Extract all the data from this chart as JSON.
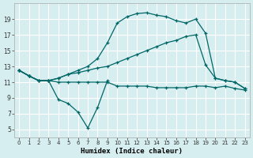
{
  "xlabel": "Humidex (Indice chaleur)",
  "bg_color": "#d7eef0",
  "grid_color": "#ffffff",
  "line_color": "#006666",
  "xlim": [
    -0.5,
    23.5
  ],
  "ylim": [
    4,
    21
  ],
  "xticks": [
    0,
    1,
    2,
    3,
    4,
    5,
    6,
    7,
    8,
    9,
    10,
    11,
    12,
    13,
    14,
    15,
    16,
    17,
    18,
    19,
    20,
    21,
    22,
    23
  ],
  "yticks": [
    5,
    7,
    9,
    11,
    13,
    15,
    17,
    19
  ],
  "line1_x": [
    0,
    1,
    2,
    3,
    4,
    5,
    6,
    7,
    8,
    9
  ],
  "line1_y": [
    12.5,
    11.8,
    11.2,
    11.2,
    8.8,
    8.3,
    7.2,
    5.2,
    7.8,
    11.2
  ],
  "line2_x": [
    0,
    1,
    2,
    3,
    4,
    5,
    6,
    7,
    8,
    9,
    10,
    11,
    12,
    13,
    14,
    15,
    16,
    17,
    18,
    19,
    20,
    21,
    22,
    23
  ],
  "line2_y": [
    12.5,
    11.8,
    11.2,
    11.2,
    11.0,
    11.0,
    11.0,
    11.0,
    11.0,
    11.0,
    10.5,
    10.5,
    10.5,
    10.5,
    10.3,
    10.3,
    10.3,
    10.3,
    10.5,
    10.5,
    10.3,
    10.5,
    10.2,
    10.0
  ],
  "line3_x": [
    0,
    1,
    2,
    3,
    4,
    5,
    6,
    7,
    8,
    9,
    10,
    11,
    12,
    13,
    14,
    15,
    16,
    17,
    18,
    19,
    20,
    21,
    22,
    23
  ],
  "line3_y": [
    12.5,
    11.8,
    11.2,
    11.2,
    11.5,
    12.0,
    12.2,
    12.5,
    12.8,
    13.0,
    13.5,
    14.0,
    14.5,
    15.0,
    15.5,
    16.0,
    16.3,
    16.8,
    17.0,
    13.2,
    11.5,
    11.2,
    11.0,
    10.2
  ],
  "line4_x": [
    0,
    1,
    2,
    3,
    4,
    5,
    6,
    7,
    8,
    9,
    10,
    11,
    12,
    13,
    14,
    15,
    16,
    17,
    18,
    19,
    20,
    21,
    22,
    23
  ],
  "line4_y": [
    12.5,
    11.8,
    11.2,
    11.2,
    11.5,
    12.0,
    12.5,
    13.0,
    14.0,
    16.0,
    18.5,
    19.3,
    19.7,
    19.8,
    19.5,
    19.3,
    18.8,
    18.5,
    19.0,
    17.2,
    11.5,
    11.2,
    11.0,
    10.2
  ]
}
